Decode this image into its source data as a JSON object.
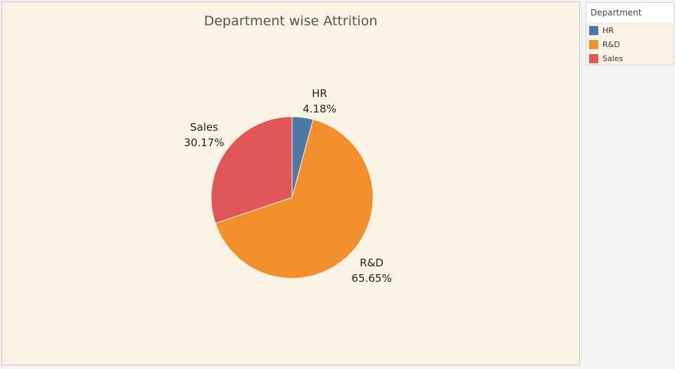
{
  "chart_data": {
    "type": "pie",
    "title": "Department wise Attrition",
    "slices": [
      {
        "name": "HR",
        "value": 4.18,
        "label": "4.18%",
        "color": "#4e79a7"
      },
      {
        "name": "R&D",
        "value": 65.65,
        "label": "65.65%",
        "color": "#f28e2b"
      },
      {
        "name": "Sales",
        "value": 30.17,
        "label": "30.17%",
        "color": "#e15759"
      }
    ]
  },
  "legend": {
    "title": "Department",
    "items": [
      {
        "label": "HR",
        "color": "#4e79a7"
      },
      {
        "label": "R&D",
        "color": "#f28e2b"
      },
      {
        "label": "Sales",
        "color": "#e15759"
      }
    ]
  }
}
